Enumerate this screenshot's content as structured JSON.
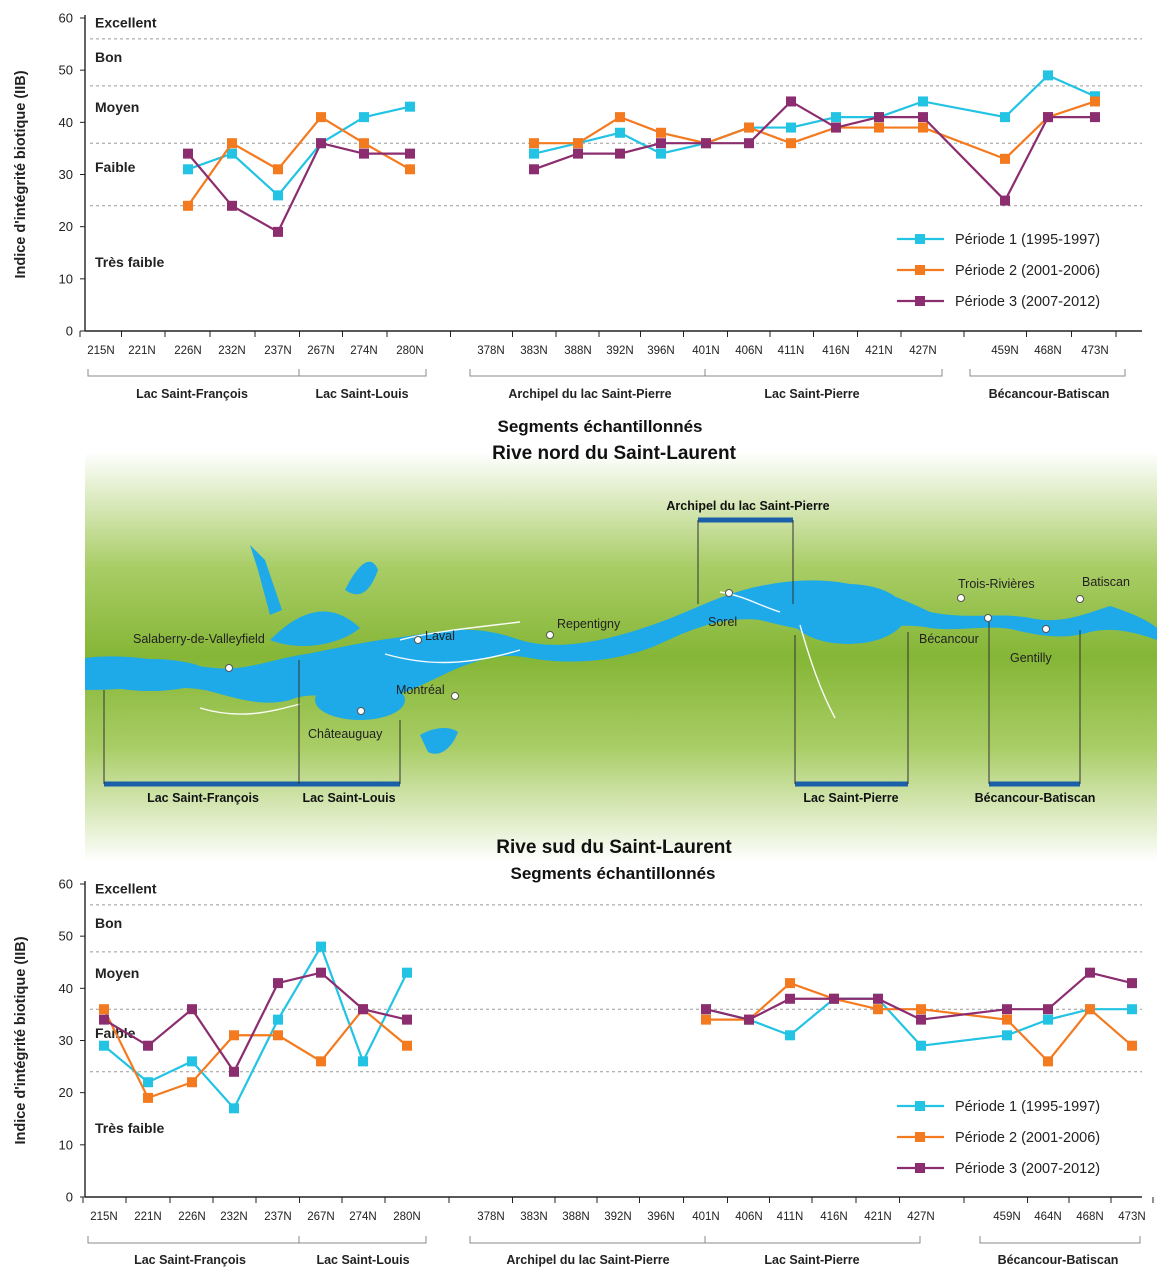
{
  "segment_axis_title": "Segments échantillonnés",
  "north_title": "Rive nord du Saint-Laurent",
  "south_title": "Rive sud du Saint-Laurent",
  "y_label": "Indice d'intégrité biotique (IIB)",
  "y_ticks": [
    "0",
    "10",
    "20",
    "30",
    "40",
    "50",
    "60"
  ],
  "bands": [
    "Excellent",
    "Bon",
    "Moyen",
    "Faible",
    "Très faible"
  ],
  "legend": [
    "Période 1 (1995-1997)",
    "Période 2 (2001-2006)",
    "Période 3 (2007-2012)"
  ],
  "colors": {
    "p1": "#22c3e3",
    "p2": "#f47a20",
    "p3": "#8b2d6f",
    "water": "#1ea9e8",
    "land": "#8bbb3a"
  },
  "map": {
    "cities": [
      "Salaberry-de-Valleyfield",
      "Laval",
      "Repentigny",
      "Sorel",
      "Trois-Rivières",
      "Batiscan",
      "Montréal",
      "Châteauguay",
      "Bécancour",
      "Gentilly"
    ],
    "top_region": "Archipel du lac Saint-Pierre",
    "bottom_regions": [
      "Lac Saint-François",
      "Lac Saint-Louis",
      "Lac Saint-Pierre",
      "Bécancour-Batiscan"
    ]
  },
  "chart_data": [
    {
      "type": "line",
      "title": "Rive nord du Saint-Laurent",
      "xlabel": "Segments échantillonnés",
      "ylabel": "Indice d'intégrité biotique (IIB)",
      "ylim": [
        0,
        60
      ],
      "thresholds": [
        24,
        36,
        47,
        56
      ],
      "categories": [
        "215N",
        "221N",
        "226N",
        "232N",
        "237N",
        "267N",
        "274N",
        "280N",
        "378N",
        "383N",
        "388N",
        "392N",
        "396N",
        "401N",
        "406N",
        "411N",
        "416N",
        "421N",
        "427N",
        "459N",
        "468N",
        "473N"
      ],
      "regions": [
        "Lac Saint-François",
        "Lac Saint-Louis",
        "Archipel du lac Saint-Pierre",
        "Lac Saint-Pierre",
        "Bécancour-Batiscan"
      ],
      "series": [
        {
          "name": "Période 1 (1995-1997)",
          "values": [
            null,
            null,
            31,
            34,
            26,
            36,
            41,
            43,
            null,
            34,
            36,
            38,
            34,
            36,
            39,
            39,
            41,
            41,
            44,
            41,
            49,
            45
          ]
        },
        {
          "name": "Période 2 (2001-2006)",
          "values": [
            null,
            null,
            24,
            36,
            31,
            41,
            36,
            31,
            null,
            36,
            36,
            41,
            38,
            36,
            39,
            36,
            39,
            39,
            39,
            33,
            41,
            44
          ]
        },
        {
          "name": "Période 3 (2007-2012)",
          "values": [
            null,
            null,
            34,
            24,
            19,
            36,
            34,
            34,
            null,
            31,
            34,
            34,
            36,
            36,
            36,
            44,
            39,
            41,
            41,
            25,
            41,
            41
          ]
        }
      ]
    },
    {
      "type": "line",
      "title": "Rive sud du Saint-Laurent",
      "xlabel": "Segments échantillonnés",
      "ylabel": "Indice d'intégrité biotique (IIB)",
      "ylim": [
        0,
        60
      ],
      "thresholds": [
        24,
        36,
        47,
        56
      ],
      "categories": [
        "215N",
        "221N",
        "226N",
        "232N",
        "237N",
        "267N",
        "274N",
        "280N",
        "378N",
        "383N",
        "388N",
        "392N",
        "396N",
        "401N",
        "406N",
        "411N",
        "416N",
        "421N",
        "427N",
        "459N",
        "464N",
        "468N",
        "473N"
      ],
      "regions": [
        "Lac Saint-François",
        "Lac Saint-Louis",
        "Archipel du lac Saint-Pierre",
        "Lac Saint-Pierre",
        "Bécancour-Batiscan"
      ],
      "series": [
        {
          "name": "Période 1 (1995-1997)",
          "values": [
            29,
            22,
            26,
            17,
            34,
            48,
            26,
            43,
            null,
            null,
            null,
            null,
            null,
            36,
            34,
            31,
            38,
            38,
            29,
            31,
            34,
            36,
            36
          ]
        },
        {
          "name": "Période 2 (2001-2006)",
          "values": [
            36,
            19,
            22,
            31,
            31,
            26,
            36,
            29,
            null,
            null,
            null,
            null,
            null,
            34,
            34,
            41,
            38,
            36,
            36,
            34,
            26,
            36,
            29
          ]
        },
        {
          "name": "Période 3 (2007-2012)",
          "values": [
            34,
            29,
            36,
            24,
            41,
            43,
            36,
            34,
            null,
            null,
            null,
            null,
            null,
            36,
            34,
            38,
            38,
            38,
            34,
            36,
            36,
            43,
            41
          ]
        }
      ]
    }
  ]
}
